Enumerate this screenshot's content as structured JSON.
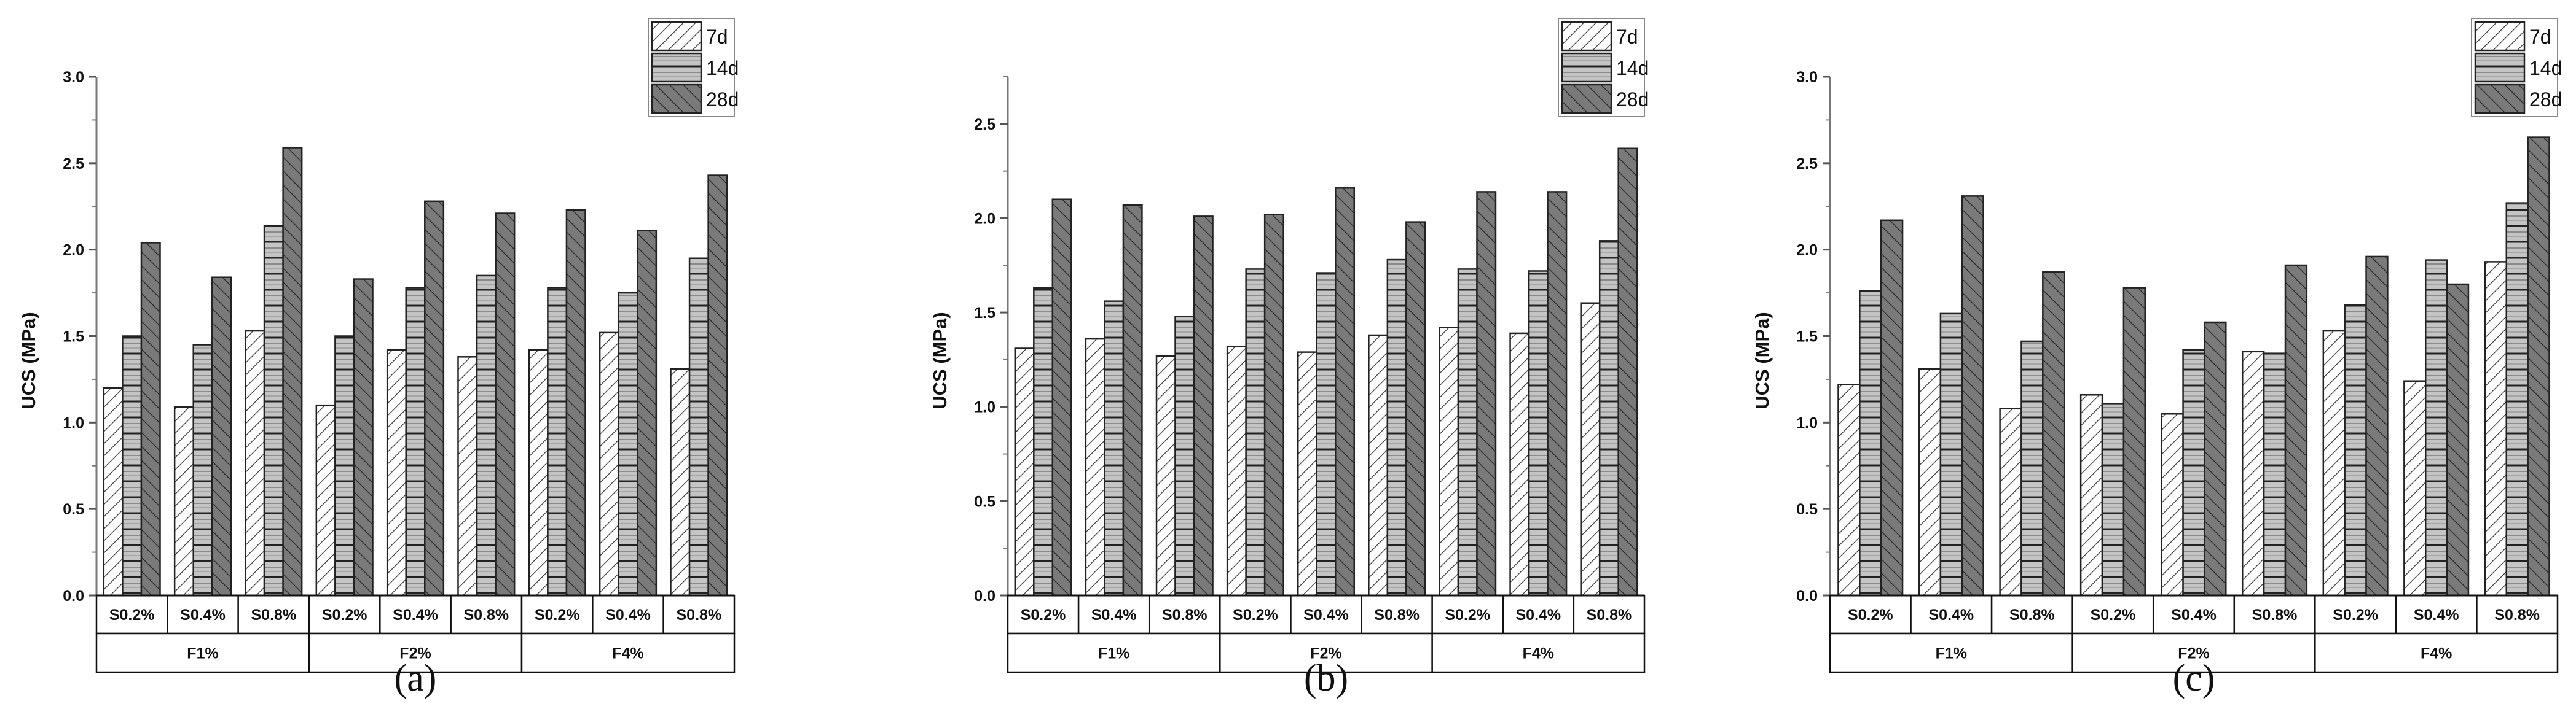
{
  "chart_data": [
    {
      "type": "bar",
      "panel_label": "(a)",
      "ylabel": "UCS (MPa)",
      "ylim": [
        0,
        3.0
      ],
      "yticks": [
        "0.0",
        "0.5",
        "1.0",
        "1.5",
        "2.0",
        "2.5",
        "3.0"
      ],
      "groups": [
        "F1%",
        "F2%",
        "F4%"
      ],
      "categories": [
        "S0.2%",
        "S0.4%",
        "S0.8%",
        "S0.2%",
        "S0.4%",
        "S0.8%",
        "S0.2%",
        "S0.4%",
        "S0.8%"
      ],
      "legend_position": "top-right",
      "series": [
        {
          "name": "7d",
          "values": [
            1.2,
            1.09,
            1.53,
            1.1,
            1.42,
            1.38,
            1.42,
            1.52,
            1.31
          ]
        },
        {
          "name": "14d",
          "values": [
            1.5,
            1.45,
            2.14,
            1.5,
            1.78,
            1.85,
            1.78,
            1.75,
            1.95
          ]
        },
        {
          "name": "28d",
          "values": [
            2.04,
            1.84,
            2.59,
            1.83,
            2.28,
            2.21,
            2.23,
            2.11,
            2.43
          ]
        }
      ]
    },
    {
      "type": "bar",
      "panel_label": "(b)",
      "ylabel": "UCS (MPa)",
      "ylim": [
        0,
        2.75
      ],
      "yticks": [
        "0.0",
        "0.5",
        "1.0",
        "1.5",
        "2.0",
        "2.5"
      ],
      "groups": [
        "F1%",
        "F2%",
        "F4%"
      ],
      "categories": [
        "S0.2%",
        "S0.4%",
        "S0.8%",
        "S0.2%",
        "S0.4%",
        "S0.8%",
        "S0.2%",
        "S0.4%",
        "S0.8%"
      ],
      "legend_position": "top-right",
      "series": [
        {
          "name": "7d",
          "values": [
            1.31,
            1.36,
            1.27,
            1.32,
            1.29,
            1.38,
            1.42,
            1.39,
            1.55
          ]
        },
        {
          "name": "14d",
          "values": [
            1.63,
            1.56,
            1.48,
            1.73,
            1.71,
            1.78,
            1.73,
            1.72,
            1.88
          ]
        },
        {
          "name": "28d",
          "values": [
            2.1,
            2.07,
            2.01,
            2.02,
            2.16,
            1.98,
            2.14,
            2.14,
            2.37
          ]
        }
      ]
    },
    {
      "type": "bar",
      "panel_label": "(c)",
      "ylabel": "UCS (MPa)",
      "ylim": [
        0,
        3.0
      ],
      "yticks": [
        "0.0",
        "0.5",
        "1.0",
        "1.5",
        "2.0",
        "2.5",
        "3.0"
      ],
      "groups": [
        "F1%",
        "F2%",
        "F4%"
      ],
      "categories": [
        "S0.2%",
        "S0.4%",
        "S0.8%",
        "S0.2%",
        "S0.4%",
        "S0.8%",
        "S0.2%",
        "S0.4%",
        "S0.8%"
      ],
      "legend_position": "top-right",
      "series": [
        {
          "name": "7d",
          "values": [
            1.22,
            1.31,
            1.08,
            1.16,
            1.05,
            1.41,
            1.53,
            1.24,
            1.93
          ]
        },
        {
          "name": "14d",
          "values": [
            1.76,
            1.63,
            1.47,
            1.11,
            1.42,
            1.4,
            1.68,
            1.94,
            2.27
          ]
        },
        {
          "name": "28d",
          "values": [
            2.17,
            2.31,
            1.87,
            1.78,
            1.58,
            1.91,
            1.96,
            1.8,
            2.65
          ]
        }
      ]
    }
  ],
  "colors": {
    "7d": "#ffffff",
    "14d": "#c4c4c4",
    "28d": "#7a7a7a",
    "hatch": "#222222"
  }
}
